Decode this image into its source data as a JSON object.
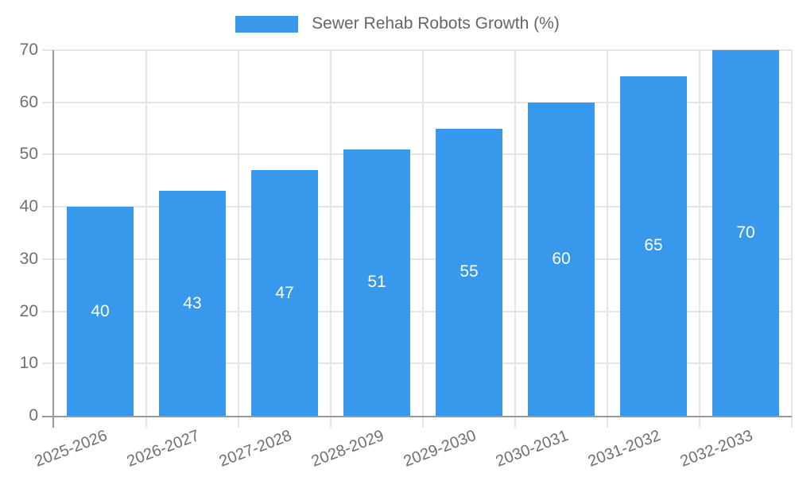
{
  "chart_data": {
    "type": "bar",
    "title": "Sewer Rehab Robots Growth (%)",
    "legend_position": "top",
    "categories": [
      "2025-2026",
      "2026-2027",
      "2027-2028",
      "2028-2029",
      "2029-2030",
      "2030-2031",
      "2031-2032",
      "2032-2033"
    ],
    "values": [
      40,
      43,
      47,
      51,
      55,
      60,
      65,
      70
    ],
    "value_labels": [
      "40",
      "43",
      "47",
      "51",
      "55",
      "60",
      "65",
      "70"
    ],
    "xlabel": "",
    "ylabel": "",
    "ylim": [
      0,
      70
    ],
    "yticks": [
      0,
      10,
      20,
      30,
      40,
      50,
      60,
      70
    ],
    "grid": true,
    "colors": {
      "bar": "#3899ec",
      "grid": "#e5e5e5",
      "axis": "#999999",
      "tick_label": "#707070",
      "value_label": "#ffffff",
      "legend_text": "#666666"
    }
  }
}
